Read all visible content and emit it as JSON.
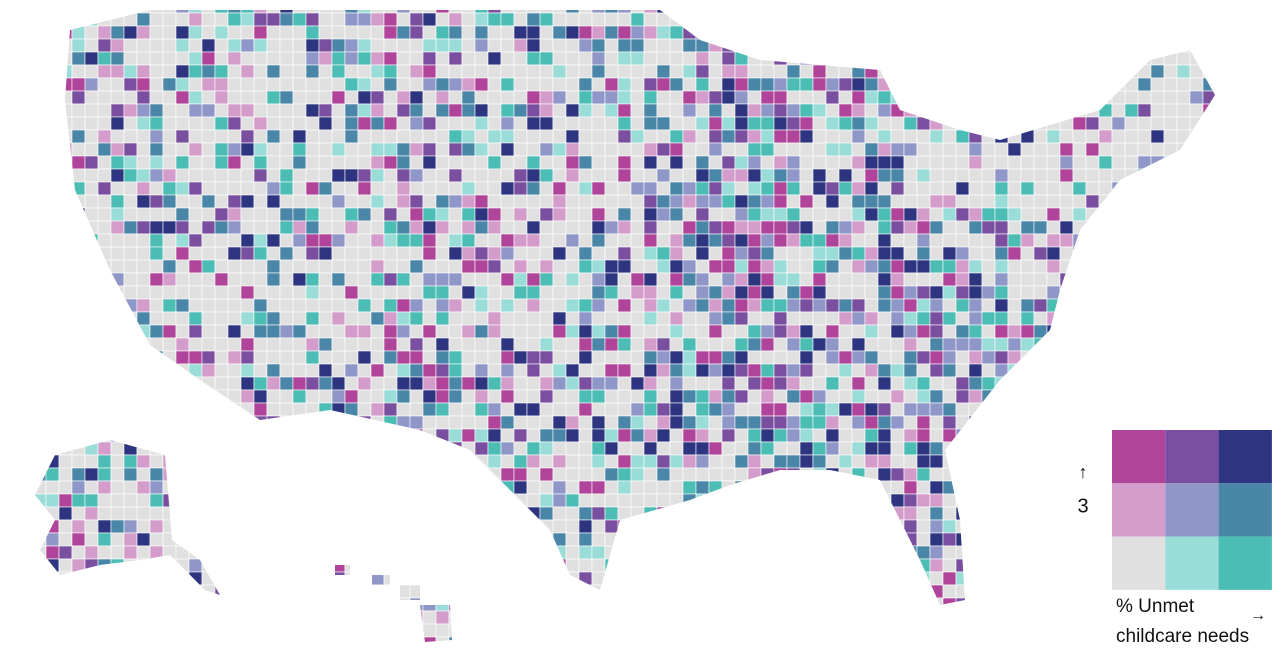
{
  "legend": {
    "colors": [
      [
        "#b0449a",
        "#7a4fa0",
        "#2d3580"
      ],
      [
        "#d49ccb",
        "#8f96c8",
        "#4a86a8"
      ],
      [
        "#e0e0e0",
        "#9adcd8",
        "#4bbdb4"
      ]
    ],
    "x_label": "% Unmet childcare needs",
    "x_arrow": "→",
    "y_label": "3",
    "y_arrow": "↑"
  }
}
